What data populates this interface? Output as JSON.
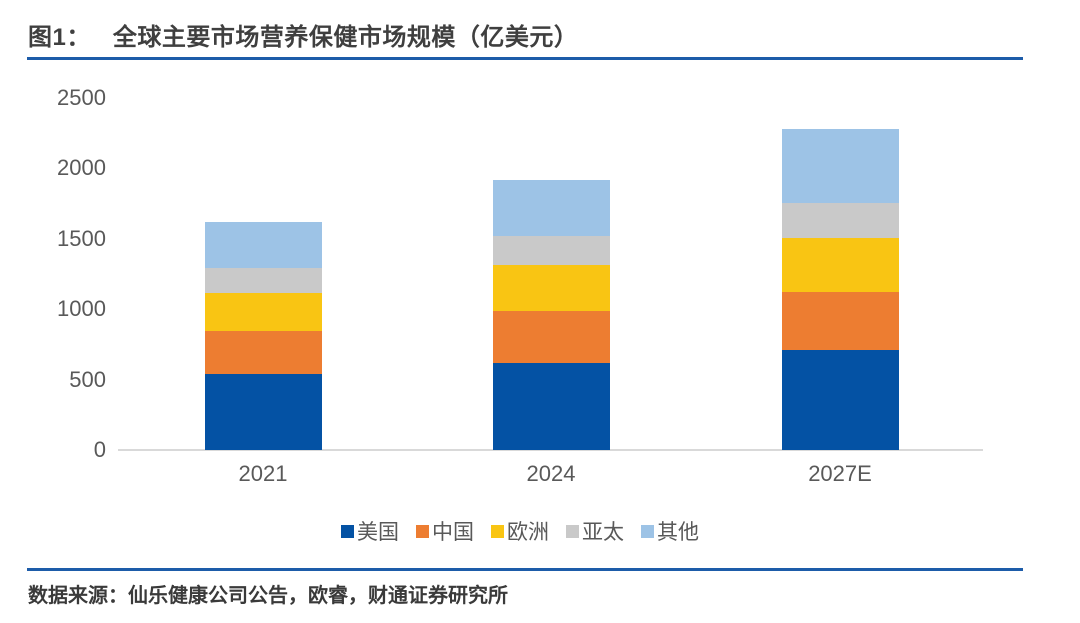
{
  "header": {
    "figure_label": "图1：",
    "title": "全球主要市场营养保健市场规模（亿美元）"
  },
  "chart_data": {
    "type": "bar",
    "stacked": true,
    "title": "全球主要市场营养保健市场规模（亿美元）",
    "unit": "亿美元",
    "categories": [
      "2021",
      "2024",
      "2027E"
    ],
    "series": [
      {
        "name": "美国",
        "color": "#0452A4",
        "values": [
          540,
          620,
          710
        ]
      },
      {
        "name": "中国",
        "color": "#ED7D31",
        "values": [
          305,
          370,
          415
        ]
      },
      {
        "name": "欧洲",
        "color": "#F9C513",
        "values": [
          270,
          320,
          380
        ]
      },
      {
        "name": "亚太",
        "color": "#C9C9C9",
        "values": [
          180,
          210,
          250
        ]
      },
      {
        "name": "其他",
        "color": "#9DC3E6",
        "values": [
          325,
          400,
          520
        ]
      }
    ],
    "totals": [
      1620,
      1920,
      2275
    ],
    "ylim": [
      0,
      2500
    ],
    "ytick_step": 500,
    "ytick_labels": [
      "0",
      "500",
      "1000",
      "1500",
      "2000",
      "2500"
    ],
    "grid": false,
    "legend_position": "bottom"
  },
  "footer": {
    "source": "数据来源：仙乐健康公司公告，欧睿，财通证券研究所"
  },
  "style_colors": {
    "rule_blue": "#1D5CA9",
    "axis_line": "#D9D9D9",
    "axis_text": "#595959",
    "title_text": "#3F3F3F"
  }
}
